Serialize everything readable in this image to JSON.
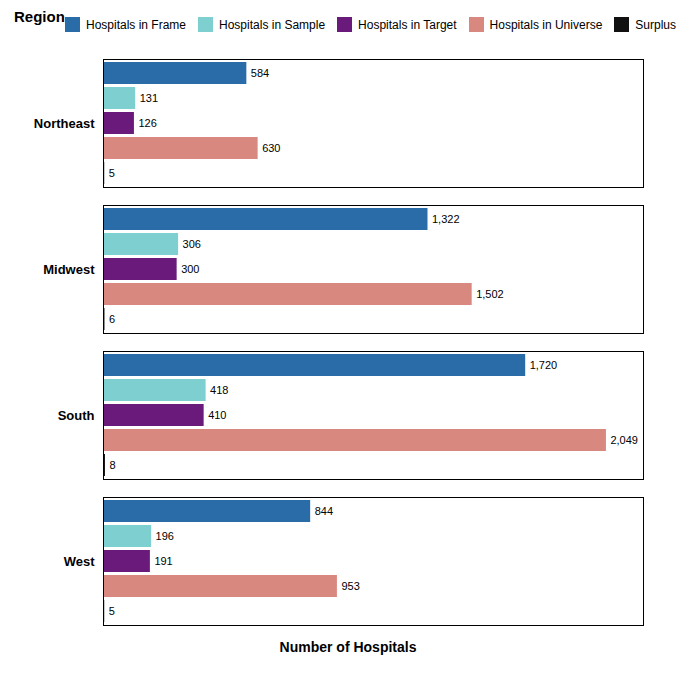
{
  "chart_data": {
    "type": "bar",
    "orientation": "horizontal",
    "title": "Region",
    "xlabel": "Number of Hospitals",
    "categories": [
      "Northeast",
      "Midwest",
      "South",
      "West"
    ],
    "series": [
      {
        "name": "Hospitals in Frame",
        "color": "#2a6ca8",
        "values": [
          584,
          1322,
          1720,
          844
        ],
        "value_labels": [
          "584",
          "1,322",
          "1,720",
          "844"
        ]
      },
      {
        "name": "Hospitals in Sample",
        "color": "#7ecfcf",
        "values": [
          131,
          306,
          418,
          196
        ],
        "value_labels": [
          "131",
          "306",
          "418",
          "196"
        ]
      },
      {
        "name": "Hospitals in Target",
        "color": "#6a1a7a",
        "values": [
          126,
          300,
          410,
          191
        ],
        "value_labels": [
          "126",
          "300",
          "410",
          "191"
        ]
      },
      {
        "name": "Hospitals in Universe",
        "color": "#d98880",
        "values": [
          630,
          1502,
          2049,
          953
        ],
        "value_labels": [
          "630",
          "1,502",
          "2,049",
          "953"
        ]
      },
      {
        "name": "Surplus",
        "color": "#111111",
        "values": [
          5,
          6,
          8,
          5
        ],
        "value_labels": [
          "5",
          "6",
          "8",
          "5"
        ]
      }
    ],
    "xlim": [
      0,
      2200
    ],
    "xticks": [],
    "tick_labels": "y",
    "data_labels": true,
    "legend": "upper right",
    "grid": false
  }
}
